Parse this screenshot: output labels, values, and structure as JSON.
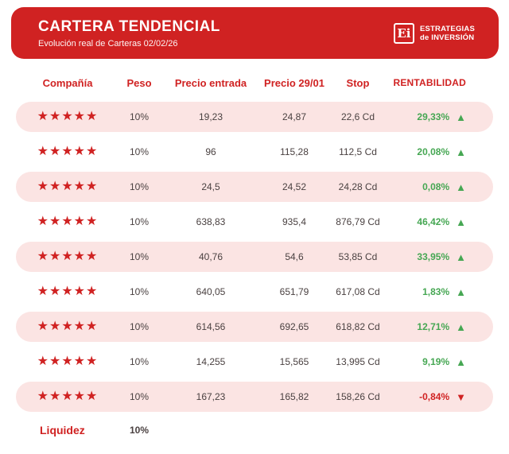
{
  "header": {
    "title": "CARTERA TENDENCIAL",
    "subtitle": "Evolución real de Carteras 02/02/26",
    "logo": {
      "monogram": "Ei",
      "line1": "ESTRATEGIAS",
      "line2": "de INVERSIÓN"
    }
  },
  "table": {
    "columns": [
      "Compañía",
      "Peso",
      "Precio entrada",
      "Precio 29/01",
      "Stop",
      "RENTABILIDAD"
    ],
    "rows": [
      {
        "stars": 5,
        "peso": "10%",
        "precio_entrada": "19,23",
        "precio_2901": "24,87",
        "stop": "22,6 Cd",
        "rentabilidad": "29,33%",
        "direction": "up"
      },
      {
        "stars": 5,
        "peso": "10%",
        "precio_entrada": "96",
        "precio_2901": "115,28",
        "stop": "112,5 Cd",
        "rentabilidad": "20,08%",
        "direction": "up"
      },
      {
        "stars": 5,
        "peso": "10%",
        "precio_entrada": "24,5",
        "precio_2901": "24,52",
        "stop": "24,28 Cd",
        "rentabilidad": "0,08%",
        "direction": "up"
      },
      {
        "stars": 5,
        "peso": "10%",
        "precio_entrada": "638,83",
        "precio_2901": "935,4",
        "stop": "876,79 Cd",
        "rentabilidad": "46,42%",
        "direction": "up"
      },
      {
        "stars": 5,
        "peso": "10%",
        "precio_entrada": "40,76",
        "precio_2901": "54,6",
        "stop": "53,85 Cd",
        "rentabilidad": "33,95%",
        "direction": "up"
      },
      {
        "stars": 5,
        "peso": "10%",
        "precio_entrada": "640,05",
        "precio_2901": "651,79",
        "stop": "617,08 Cd",
        "rentabilidad": "1,83%",
        "direction": "up"
      },
      {
        "stars": 5,
        "peso": "10%",
        "precio_entrada": "614,56",
        "precio_2901": "692,65",
        "stop": "618,82 Cd",
        "rentabilidad": "12,71%",
        "direction": "up"
      },
      {
        "stars": 5,
        "peso": "10%",
        "precio_entrada": "14,255",
        "precio_2901": "15,565",
        "stop": "13,995 Cd",
        "rentabilidad": "9,19%",
        "direction": "up"
      },
      {
        "stars": 5,
        "peso": "10%",
        "precio_entrada": "167,23",
        "precio_2901": "165,82",
        "stop": "158,26 Cd",
        "rentabilidad": "-0,84%",
        "direction": "down"
      }
    ],
    "footer": {
      "label": "Liquidez",
      "peso": "10%"
    }
  },
  "icons": {
    "star": "★",
    "up_triangle": "▲",
    "down_triangle": "▼"
  },
  "colors": {
    "brand_red": "#d02222",
    "row_pink": "#fbe4e3",
    "text_dark": "#4a4141",
    "positive_green": "#46a753",
    "negative_red": "#d02222"
  },
  "chart_data": {
    "type": "table",
    "title": "CARTERA TENDENCIAL",
    "subtitle": "Evolución real de Carteras 02/02/26",
    "columns": [
      "Compañía",
      "Peso",
      "Precio entrada",
      "Precio 29/01",
      "Stop",
      "RENTABILIDAD"
    ],
    "rows": [
      [
        "★★★★★",
        "10%",
        "19,23",
        "24,87",
        "22,6 Cd",
        "29,33% ▲"
      ],
      [
        "★★★★★",
        "10%",
        "96",
        "115,28",
        "112,5 Cd",
        "20,08% ▲"
      ],
      [
        "★★★★★",
        "10%",
        "24,5",
        "24,52",
        "24,28 Cd",
        "0,08% ▲"
      ],
      [
        "★★★★★",
        "10%",
        "638,83",
        "935,4",
        "876,79 Cd",
        "46,42% ▲"
      ],
      [
        "★★★★★",
        "10%",
        "40,76",
        "54,6",
        "53,85 Cd",
        "33,95% ▲"
      ],
      [
        "★★★★★",
        "10%",
        "640,05",
        "651,79",
        "617,08 Cd",
        "1,83% ▲"
      ],
      [
        "★★★★★",
        "10%",
        "614,56",
        "692,65",
        "618,82 Cd",
        "12,71% ▲"
      ],
      [
        "★★★★★",
        "10%",
        "14,255",
        "15,565",
        "13,995 Cd",
        "9,19% ▲"
      ],
      [
        "★★★★★",
        "10%",
        "167,23",
        "165,82",
        "158,26 Cd",
        "-0,84% ▼"
      ]
    ],
    "footer_row": [
      "Liquidez",
      "10%"
    ]
  }
}
